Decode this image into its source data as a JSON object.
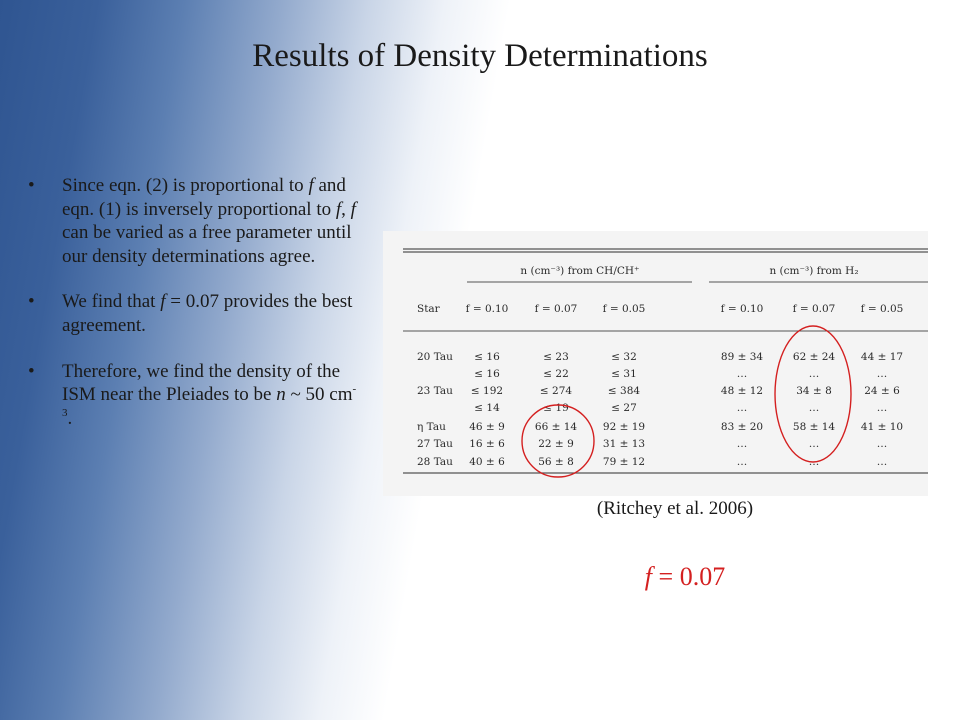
{
  "slide": {
    "title": "Results of Density Determinations",
    "bullets": [
      {
        "parts": [
          {
            "t": "Since eqn. (2) is proportional to "
          },
          {
            "t": "f",
            "i": true
          },
          {
            "t": " and eqn. (1) is inversely proportional to "
          },
          {
            "t": "f",
            "i": true
          },
          {
            "t": ", "
          },
          {
            "t": "f",
            "i": true
          },
          {
            "t": " can be varied as a free parameter until our density determinations agree."
          }
        ]
      },
      {
        "parts": [
          {
            "t": "We find that "
          },
          {
            "t": "f",
            "i": true
          },
          {
            "t": " = 0.07 provides the best agreement."
          }
        ]
      },
      {
        "parts": [
          {
            "t": "Therefore, we find the density of the ISM near the Pleiades to be "
          },
          {
            "t": "n",
            "i": true
          },
          {
            "t": " ~ 50 cm"
          },
          {
            "t": "-3",
            "sup": true
          },
          {
            "t": "."
          }
        ]
      }
    ],
    "bullet_glyph": "•",
    "caption": "(Ritchey et al. 2006)",
    "result_var": "f",
    "result_rest": " = 0.07"
  },
  "table": {
    "group_headers": [
      "n (cm⁻³) from CH/CH⁺",
      "n (cm⁻³) from H₂"
    ],
    "columns": [
      "Star",
      "f = 0.10",
      "f = 0.07",
      "f = 0.05",
      "f = 0.10",
      "f = 0.07",
      "f = 0.05"
    ],
    "rows": [
      [
        "20 Tau",
        "≤  16",
        "≤  23",
        "≤  32",
        "89 ± 34",
        "62 ± 24",
        "44 ± 17"
      ],
      [
        "",
        "≤  16",
        "≤  22",
        "≤  31",
        "…",
        "…",
        "…"
      ],
      [
        "23 Tau",
        "≤ 192",
        "≤ 274",
        "≤ 384",
        "48 ± 12",
        "34 ±  8",
        "24 ±  6"
      ],
      [
        "",
        "≤  14",
        "≤  19",
        "≤  27",
        "…",
        "…",
        "…"
      ],
      [
        "η Tau",
        "46 ± 9",
        "66 ± 14",
        "92 ± 19",
        "83 ± 20",
        "58 ± 14",
        "41 ± 10"
      ],
      [
        "27 Tau",
        "16 ± 6",
        "22 ±  9",
        "31 ± 13",
        "…",
        "…",
        "…"
      ],
      [
        "28 Tau",
        "40 ± 6",
        "56 ±  8",
        "79 ± 12",
        "…",
        "…",
        "…"
      ]
    ],
    "highlight_color": "#d42020"
  }
}
